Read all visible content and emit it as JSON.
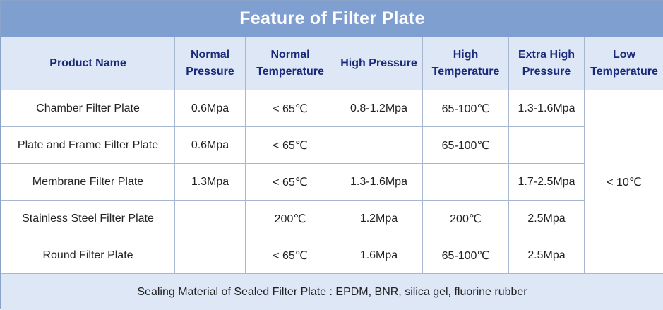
{
  "title": "Feature of Filter Plate",
  "headers": [
    "Product Name",
    "Normal Pressure",
    "Normal Temperature",
    "High Pressure",
    "High Temperature",
    "Extra High Pressure",
    "Low Temperature"
  ],
  "rows": [
    {
      "name": "Chamber Filter Plate",
      "normal_pressure": "0.6Mpa",
      "normal_temperature": "< 65℃",
      "high_pressure": "0.8-1.2Mpa",
      "high_temperature": "65-100℃",
      "extra_high_pressure": "1.3-1.6Mpa"
    },
    {
      "name": "Plate and Frame Filter Plate",
      "normal_pressure": "0.6Mpa",
      "normal_temperature": "< 65℃",
      "high_pressure": "",
      "high_temperature": "65-100℃",
      "extra_high_pressure": ""
    },
    {
      "name": "Membrane Filter Plate",
      "normal_pressure": "1.3Mpa",
      "normal_temperature": "< 65℃",
      "high_pressure": "1.3-1.6Mpa",
      "high_temperature": "",
      "extra_high_pressure": "1.7-2.5Mpa"
    },
    {
      "name": "Stainless Steel Filter Plate",
      "normal_pressure": "",
      "normal_temperature": "200℃",
      "high_pressure": "1.2Mpa",
      "high_temperature": "200℃",
      "extra_high_pressure": "2.5Mpa"
    },
    {
      "name": "Round Filter Plate",
      "normal_pressure": "",
      "normal_temperature": "< 65℃",
      "high_pressure": "1.6Mpa",
      "high_temperature": "65-100℃",
      "extra_high_pressure": "2.5Mpa"
    }
  ],
  "low_temperature_value": "< 10℃",
  "footer": "Sealing Material of Sealed Filter Plate : EPDM, BNR, silica gel, fluorine rubber",
  "colors": {
    "title_bg": "#7e9fd0",
    "header_bg": "#dde7f6",
    "header_text": "#1a2a7a",
    "border": "#a7b7d0"
  }
}
